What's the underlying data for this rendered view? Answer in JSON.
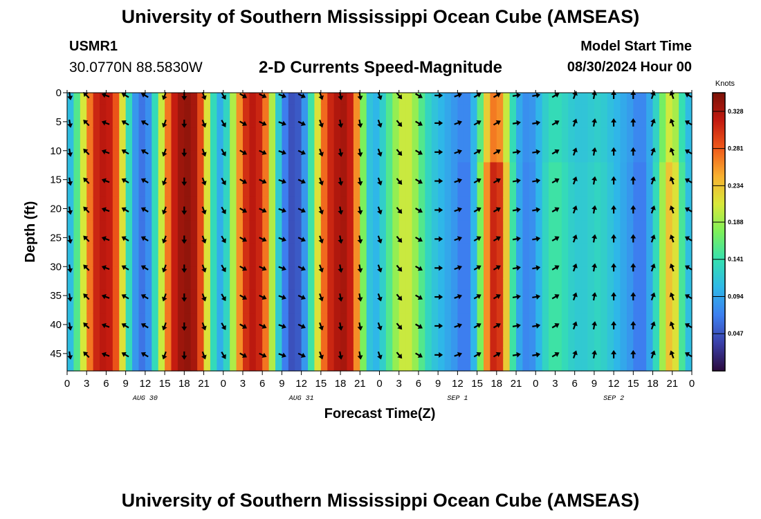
{
  "header": {
    "title": "University of Southern Mississippi Ocean Cube (AMSEAS)",
    "station_id": "USMR1",
    "station_coords": "30.0770N  88.5830W",
    "variable_title": "2-D Currents Speed-Magnitude",
    "model_start_label": "Model Start Time",
    "model_start_value": "08/30/2024 Hour 00"
  },
  "footer": {
    "title": "University of Southern Mississippi Ocean Cube (AMSEAS)"
  },
  "colors": {
    "scale": [
      "#2b0a3d",
      "#3a3fa8",
      "#3d7ff0",
      "#2fb8e8",
      "#35e0b0",
      "#7df05a",
      "#d8e83a",
      "#f8b030",
      "#f05a1a",
      "#c21a10",
      "#7a1208"
    ]
  },
  "chart_data": {
    "type": "heatmap",
    "title": "2-D Currents Speed-Magnitude",
    "xlabel": "Forecast Time(Z)",
    "ylabel": "Depth (ft)",
    "x_hours_range": [
      0,
      96
    ],
    "y_depth_range_ft": [
      0,
      48
    ],
    "x_tick_labels": [
      "0",
      "3",
      "6",
      "9",
      "12",
      "15",
      "18",
      "21",
      "0",
      "3",
      "6",
      "9",
      "12",
      "15",
      "18",
      "21",
      "0",
      "3",
      "6",
      "9",
      "12",
      "15",
      "18",
      "21",
      "0",
      "3",
      "6",
      "9",
      "12",
      "15",
      "18",
      "21",
      "0"
    ],
    "day_labels": [
      {
        "label": "AUG 30",
        "hour": 12
      },
      {
        "label": "AUG 31",
        "hour": 36
      },
      {
        "label": "SEP 1",
        "hour": 60
      },
      {
        "label": "SEP 2",
        "hour": 84
      }
    ],
    "y_ticks": [
      0,
      5,
      10,
      15,
      20,
      25,
      30,
      35,
      40,
      45
    ],
    "y_tick_labels": [
      "0",
      "5",
      "10",
      "15",
      "20",
      "25",
      "30",
      "35",
      "40",
      "45"
    ],
    "colorbar": {
      "unit": "Knots",
      "range": [
        0,
        0.3515
      ],
      "ticks": [
        0.047,
        0.094,
        0.141,
        0.188,
        0.234,
        0.281,
        0.328
      ],
      "tick_labels": [
        "0.047",
        "0.094",
        "0.141",
        "0.188",
        "0.234",
        "0.281",
        "0.328"
      ]
    },
    "speed_time_profile_hours": [
      0,
      1,
      2,
      3,
      4,
      5,
      6,
      7,
      8,
      9,
      10,
      11,
      12,
      13,
      14,
      15,
      16,
      17,
      18,
      19,
      20,
      21,
      22,
      23,
      24,
      25,
      26,
      27,
      28,
      29,
      30,
      31,
      32,
      33,
      34,
      35,
      36,
      37,
      38,
      39,
      40,
      41,
      42,
      43,
      44,
      45,
      46,
      47,
      48,
      49,
      50,
      51,
      52,
      53,
      54,
      55,
      56,
      57,
      58,
      59,
      60,
      61,
      62,
      63,
      64,
      65,
      66,
      67,
      68,
      69,
      70,
      71,
      72,
      73,
      74,
      75,
      76,
      77,
      78,
      79,
      80,
      81,
      82,
      83,
      84,
      85,
      86,
      87,
      88,
      89,
      90,
      91,
      92,
      93,
      94,
      95,
      96
    ],
    "speed_time_profile_knots": [
      0.09,
      0.13,
      0.18,
      0.24,
      0.3,
      0.32,
      0.32,
      0.31,
      0.26,
      0.17,
      0.1,
      0.07,
      0.06,
      0.1,
      0.17,
      0.24,
      0.3,
      0.33,
      0.34,
      0.34,
      0.32,
      0.26,
      0.17,
      0.1,
      0.1,
      0.16,
      0.23,
      0.29,
      0.32,
      0.32,
      0.3,
      0.24,
      0.15,
      0.09,
      0.05,
      0.04,
      0.06,
      0.11,
      0.18,
      0.25,
      0.3,
      0.32,
      0.33,
      0.33,
      0.3,
      0.22,
      0.13,
      0.1,
      0.11,
      0.14,
      0.17,
      0.2,
      0.21,
      0.2,
      0.17,
      0.14,
      0.12,
      0.11,
      0.1,
      0.09,
      0.08,
      0.06,
      0.08,
      0.13,
      0.22,
      0.3,
      0.32,
      0.28,
      0.18,
      0.11,
      0.08,
      0.07,
      0.09,
      0.12,
      0.14,
      0.15,
      0.14,
      0.13,
      0.12,
      0.12,
      0.12,
      0.13,
      0.13,
      0.12,
      0.11,
      0.1,
      0.09,
      0.08,
      0.06,
      0.08,
      0.11,
      0.16,
      0.22,
      0.25,
      0.18,
      0.12,
      0.1
    ],
    "vector_grid": {
      "hours": [
        0,
        3,
        6,
        9,
        12,
        15,
        18,
        21,
        24,
        27,
        30,
        33,
        36,
        39,
        42,
        45,
        48,
        51,
        54,
        57,
        60,
        63,
        66,
        69,
        72,
        75,
        78,
        81,
        84,
        87,
        90,
        93,
        96
      ],
      "depths_ft": [
        0,
        5,
        10,
        15,
        20,
        25,
        30,
        35,
        40,
        45
      ],
      "direction_time_profile_deg": [
        170,
        315,
        290,
        300,
        300,
        200,
        180,
        160,
        150,
        120,
        115,
        110,
        115,
        160,
        170,
        170,
        160,
        140,
        120,
        90,
        70,
        60,
        60,
        80,
        80,
        60,
        20,
        10,
        0,
        0,
        20,
        340,
        300
      ]
    }
  }
}
